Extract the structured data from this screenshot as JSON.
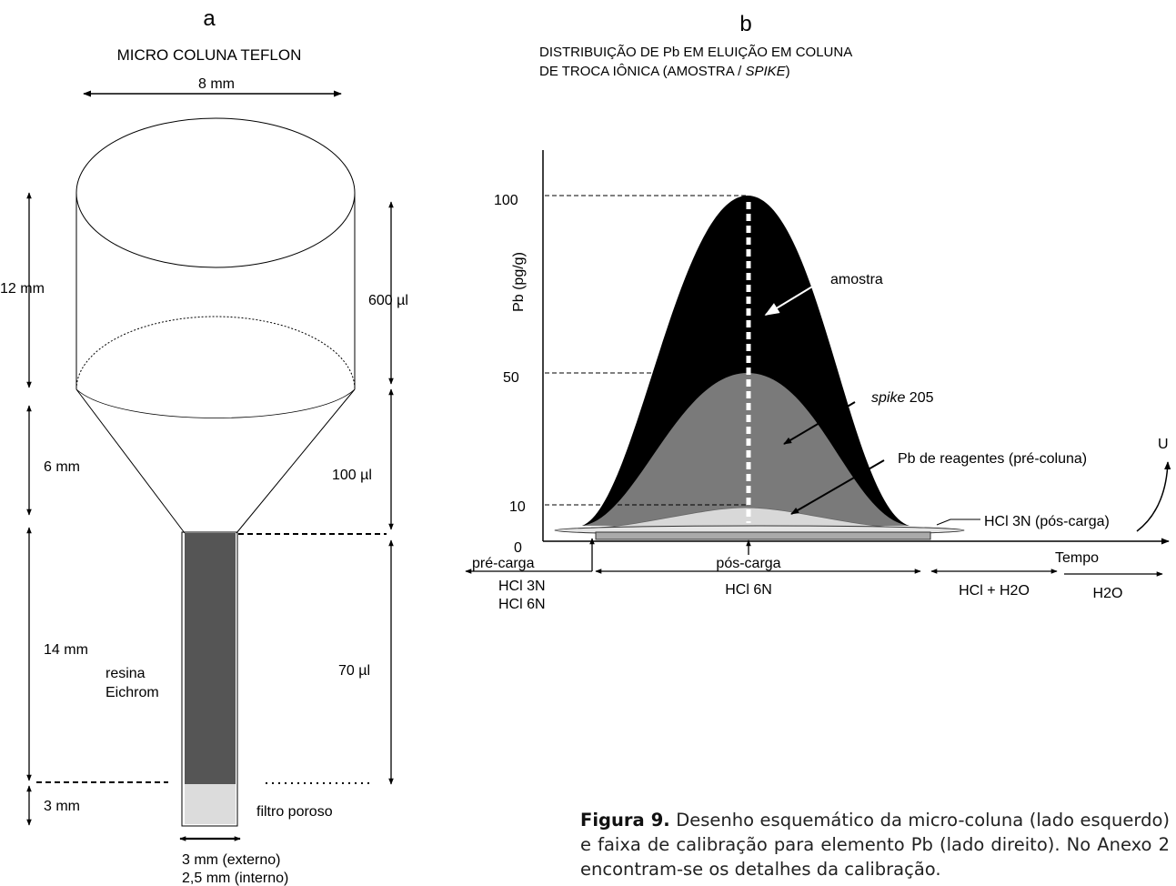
{
  "panel_a": {
    "letter": "a",
    "title": "MICRO COLUNA TEFLON",
    "dim_top": "8 mm",
    "dim_12": "12 mm",
    "dim_6": "6 mm",
    "dim_14": "14 mm",
    "dim_3": "3 mm",
    "vol_600": "600 µl",
    "vol_100": "100 µl",
    "vol_70": "70 µl",
    "resin_line1": "resina",
    "resin_line2": "Eichrom",
    "filter": "filtro poroso",
    "width_ext": "3 mm  (externo)",
    "width_int": "2,5 mm (interno)"
  },
  "panel_b": {
    "letter": "b",
    "title_line1": "DISTRIBUIÇÃO DE Pb EM ELUIÇÃO EM COLUNA",
    "title_line2_a": "DE TROCA IÔNICA (AMOSTRA / ",
    "title_line2_b": "SPIKE",
    "title_line2_c": ")",
    "ylabel": "Pb (pg/g)",
    "xlabel": "Tempo",
    "label_amostra": "amostra",
    "label_spike_a": "spike",
    "label_spike_b": " 205",
    "label_reagentes": "Pb de reagentes (pré-coluna)",
    "label_hcl3n_pos": "HCl 3N (pós-carga)",
    "label_u": "U",
    "label_pre_carga": "pré-carga",
    "label_pos_carga": "pós-carga",
    "label_hcl3n": "HCl  3N",
    "label_hcl6n_left": "HCl  6N",
    "label_hcl6n": "HCl 6N",
    "label_hcl_h2o": "HCl + H2O",
    "label_h2o": "H2O"
  },
  "chart_data": {
    "type": "area",
    "ylabel": "Pb (pg/g)",
    "xlabel": "Tempo",
    "yticks": [
      0,
      10,
      50,
      100
    ],
    "series": [
      {
        "name": "amostra",
        "peak": 100,
        "color": "#000000"
      },
      {
        "name": "spike 205",
        "peak": 50,
        "color": "#7a7a7a"
      },
      {
        "name": "Pb de reagentes (pré-coluna)",
        "peak": 10,
        "color": "#cfcfcf"
      }
    ]
  },
  "caption": {
    "label": "Figura 9.",
    "text": " Desenho esquemático da micro-coluna (lado esquerdo) e faixa de calibração para elemento Pb (lado direito).  No Anexo 2 encontram-se os detalhes da calibração."
  }
}
